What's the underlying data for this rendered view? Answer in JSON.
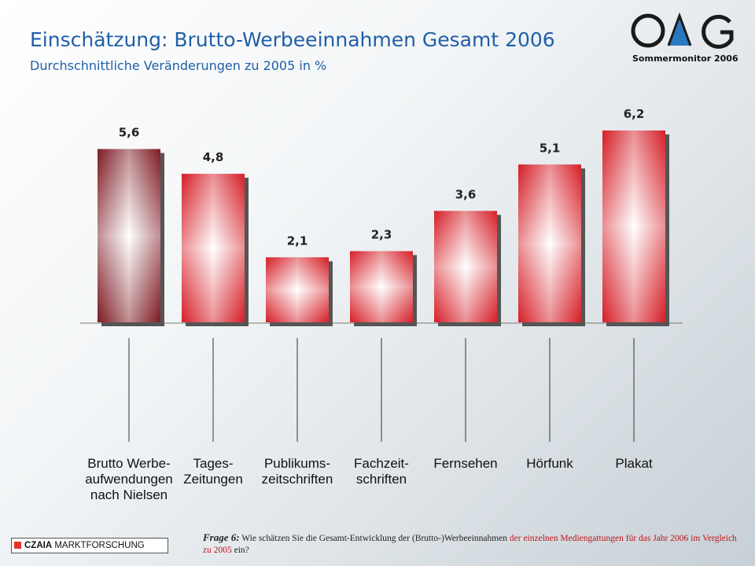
{
  "header": {
    "title": "Einschätzung: Brutto-Werbeeinnahmen Gesamt 2006",
    "subtitle": "Durchschnittliche Veränderungen zu 2005 in %"
  },
  "logo": {
    "icon": "omg-logo-icon",
    "label": "Sommermonitor 2006",
    "colors": {
      "letters": "#1a1a1a",
      "triangle": "#2b78c2"
    }
  },
  "chart_data": {
    "type": "bar",
    "categories": [
      "Brutto Werbe-aufwendungen nach Nielsen",
      "Tages-Zeitungen",
      "Publikums-zeitschriften",
      "Fachzeit-schriften",
      "Fernsehen",
      "Hörfunk",
      "Plakat"
    ],
    "category_lines": [
      [
        "Brutto Werbe-",
        "aufwendungen",
        "nach Nielsen"
      ],
      [
        "Tages-",
        "Zeitungen"
      ],
      [
        "Publikums-",
        "zeitschriften"
      ],
      [
        "Fachzeit-",
        "schriften"
      ],
      [
        "Fernsehen"
      ],
      [
        "Hörfunk"
      ],
      [
        "Plakat"
      ]
    ],
    "values": [
      5.6,
      4.8,
      2.1,
      2.3,
      3.6,
      5.1,
      6.2
    ],
    "value_labels": [
      "5,6",
      "4,8",
      "2,1",
      "2,3",
      "3,6",
      "5,1",
      "6,2"
    ],
    "ylim": [
      0,
      6.2
    ],
    "grid": false,
    "legend": "none",
    "colors": {
      "first_bar": "#7d1a22",
      "bars": "#d51e27",
      "highlight": "#ffffff"
    }
  },
  "footer": {
    "brand_bold": "CZAIA",
    "brand_rest": " MARKTFORSCHUNG",
    "question_label": "Frage 6:",
    "question_part1": " Wie schätzen Sie die Gesamt-Entwicklung der (Brutto-)Werbeeinnahmen ",
    "question_red1": "der einzelnen Mediengattungen für das Jahr 2006 im Vergleich zu 2005",
    "question_part2": " ein?"
  }
}
